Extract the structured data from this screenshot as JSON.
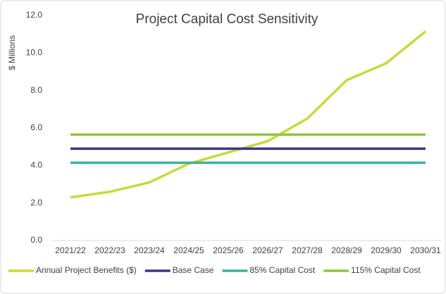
{
  "chart_data": {
    "type": "line",
    "title": "Project Capital Cost Sensitivity",
    "y_label": "$ Millions",
    "categories": [
      "2021/22",
      "2022/23",
      "2023/24",
      "2024/25",
      "2025/26",
      "2026/27",
      "2027/28",
      "2028/29",
      "2029/30",
      "2030/31"
    ],
    "series": [
      {
        "name": "Annual Project Benefits ($)",
        "color": "#c8d93a",
        "values": [
          2.3,
          2.6,
          3.1,
          4.1,
          4.7,
          5.3,
          6.5,
          8.55,
          9.45,
          11.15
        ]
      },
      {
        "name": "Base Case",
        "color": "#3b3587",
        "values": [
          4.9,
          4.9,
          4.9,
          4.9,
          4.9,
          4.9,
          4.9,
          4.9,
          4.9,
          4.9
        ]
      },
      {
        "name": "85% Capital Cost",
        "color": "#3cb39b",
        "values": [
          4.15,
          4.15,
          4.15,
          4.15,
          4.15,
          4.15,
          4.15,
          4.15,
          4.15,
          4.15
        ]
      },
      {
        "name": "115% Capital Cost",
        "color": "#8cc63f",
        "values": [
          5.65,
          5.65,
          5.65,
          5.65,
          5.65,
          5.65,
          5.65,
          5.65,
          5.65,
          5.65
        ]
      }
    ],
    "ylim": [
      0,
      12
    ],
    "yticks": [
      {
        "value": 0,
        "label": "0.0"
      },
      {
        "value": 2,
        "label": "2.0"
      },
      {
        "value": 4,
        "label": "4.0"
      },
      {
        "value": 6,
        "label": "6.0"
      },
      {
        "value": 8,
        "label": "8.0"
      },
      {
        "value": 10,
        "label": "10.0"
      },
      {
        "value": 12,
        "label": "12.0"
      }
    ],
    "legend": "bottom"
  }
}
